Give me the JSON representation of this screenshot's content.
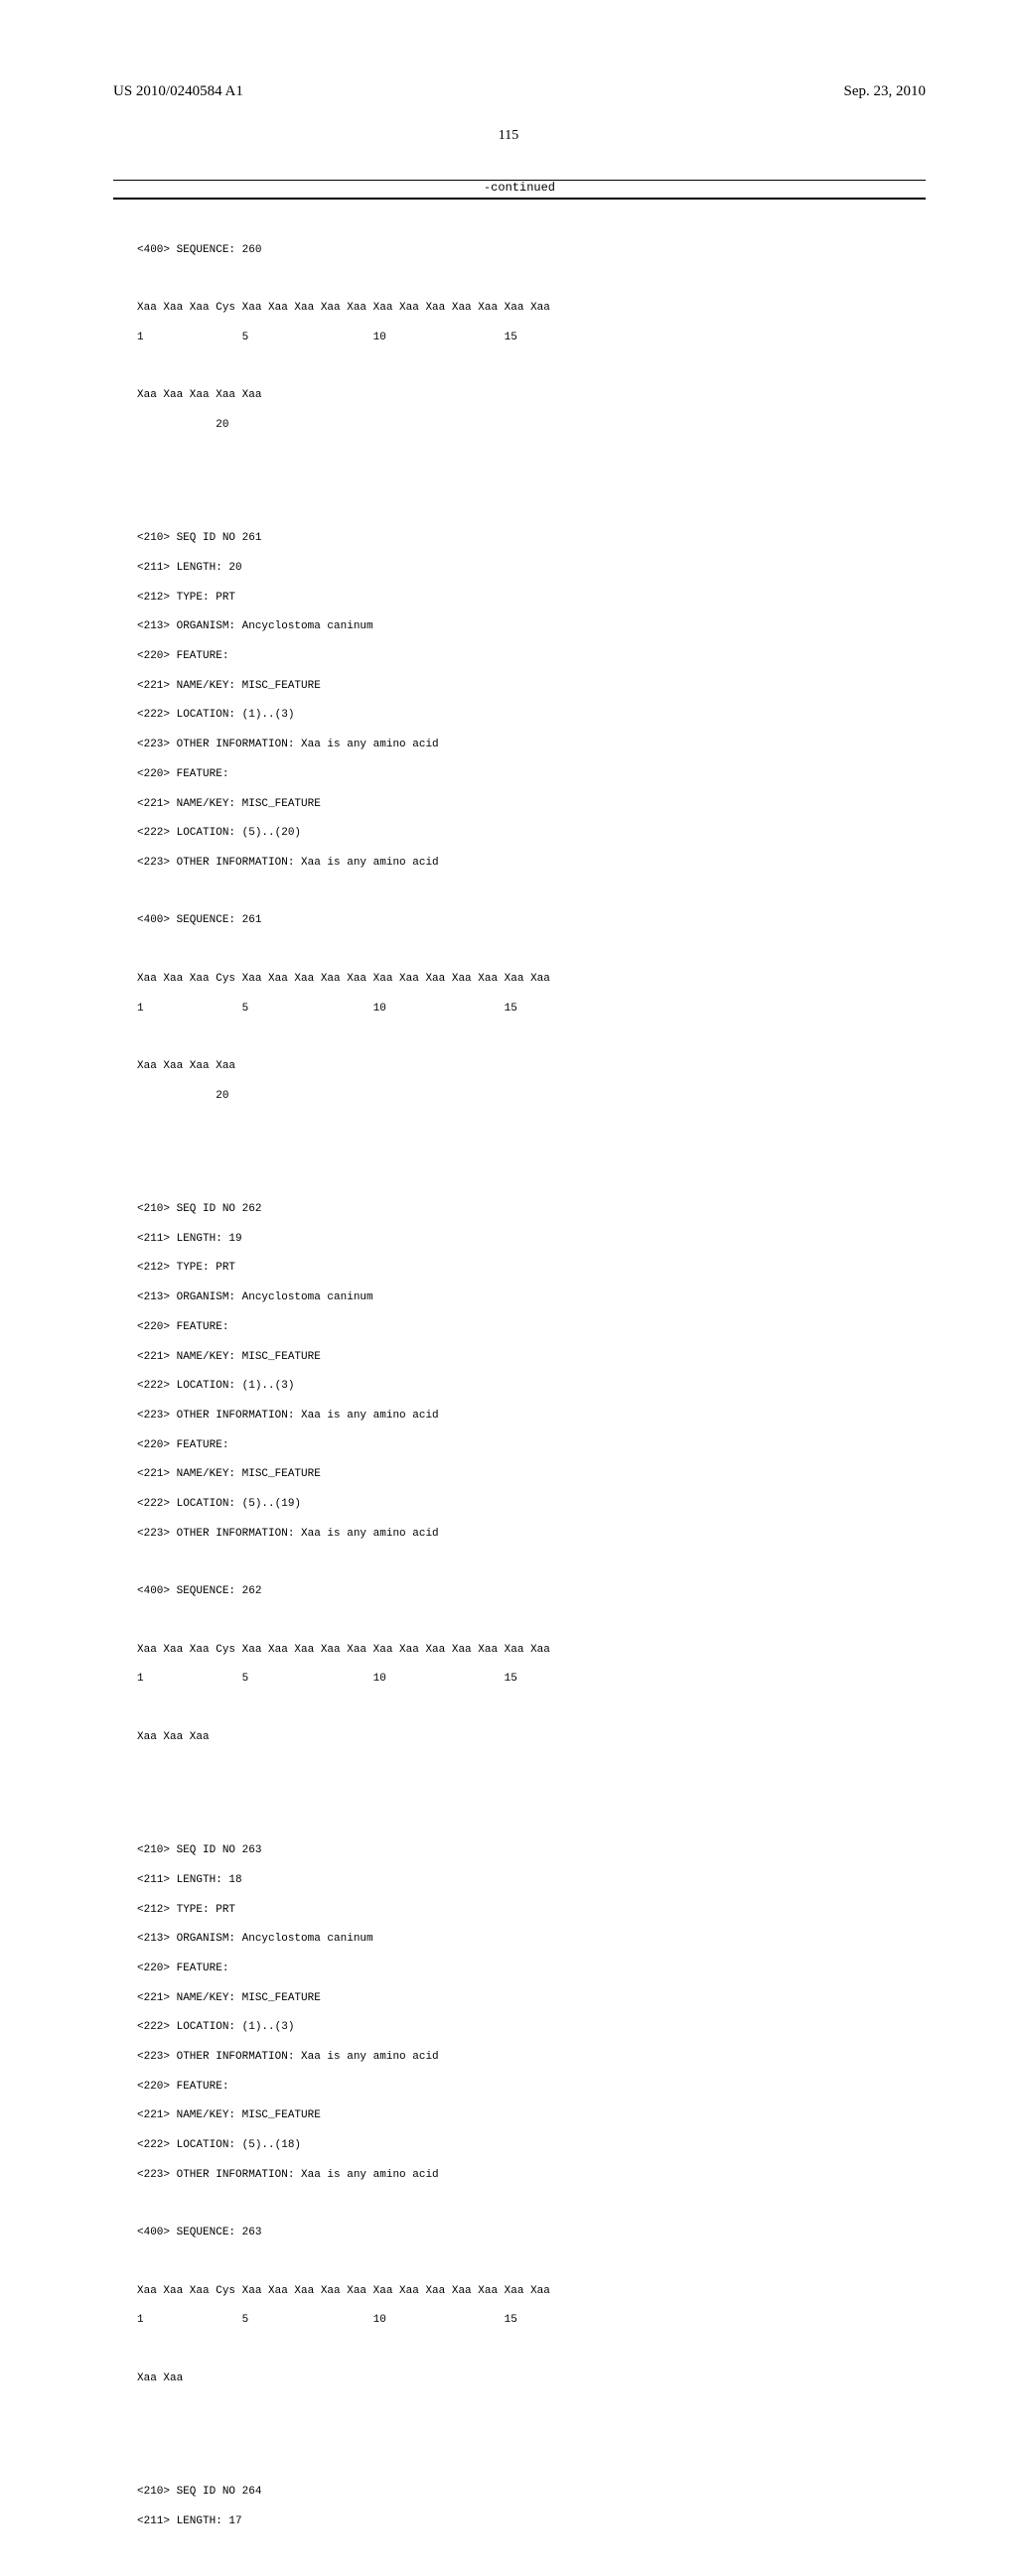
{
  "header": {
    "publication_number": "US 2010/0240584 A1",
    "publication_date": "Sep. 23, 2010"
  },
  "page_number": "115",
  "continued_label": "-continued",
  "entries": [
    {
      "seq_header": "<400> SEQUENCE: 260",
      "seq_line1": "Xaa Xaa Xaa Cys Xaa Xaa Xaa Xaa Xaa Xaa Xaa Xaa Xaa Xaa Xaa Xaa",
      "pos_line1": "1               5                   10                  15",
      "seq_line2": "Xaa Xaa Xaa Xaa Xaa",
      "pos_line2": "            20"
    },
    {
      "meta": [
        "<210> SEQ ID NO 261",
        "<211> LENGTH: 20",
        "<212> TYPE: PRT",
        "<213> ORGANISM: Ancyclostoma caninum",
        "<220> FEATURE:",
        "<221> NAME/KEY: MISC_FEATURE",
        "<222> LOCATION: (1)..(3)",
        "<223> OTHER INFORMATION: Xaa is any amino acid",
        "<220> FEATURE:",
        "<221> NAME/KEY: MISC_FEATURE",
        "<222> LOCATION: (5)..(20)",
        "<223> OTHER INFORMATION: Xaa is any amino acid"
      ],
      "seq_header": "<400> SEQUENCE: 261",
      "seq_line1": "Xaa Xaa Xaa Cys Xaa Xaa Xaa Xaa Xaa Xaa Xaa Xaa Xaa Xaa Xaa Xaa",
      "pos_line1": "1               5                   10                  15",
      "seq_line2": "Xaa Xaa Xaa Xaa",
      "pos_line2": "            20"
    },
    {
      "meta": [
        "<210> SEQ ID NO 262",
        "<211> LENGTH: 19",
        "<212> TYPE: PRT",
        "<213> ORGANISM: Ancyclostoma caninum",
        "<220> FEATURE:",
        "<221> NAME/KEY: MISC_FEATURE",
        "<222> LOCATION: (1)..(3)",
        "<223> OTHER INFORMATION: Xaa is any amino acid",
        "<220> FEATURE:",
        "<221> NAME/KEY: MISC_FEATURE",
        "<222> LOCATION: (5)..(19)",
        "<223> OTHER INFORMATION: Xaa is any amino acid"
      ],
      "seq_header": "<400> SEQUENCE: 262",
      "seq_line1": "Xaa Xaa Xaa Cys Xaa Xaa Xaa Xaa Xaa Xaa Xaa Xaa Xaa Xaa Xaa Xaa",
      "pos_line1": "1               5                   10                  15",
      "seq_line2": "Xaa Xaa Xaa",
      "pos_line2": ""
    },
    {
      "meta": [
        "<210> SEQ ID NO 263",
        "<211> LENGTH: 18",
        "<212> TYPE: PRT",
        "<213> ORGANISM: Ancyclostoma caninum",
        "<220> FEATURE:",
        "<221> NAME/KEY: MISC_FEATURE",
        "<222> LOCATION: (1)..(3)",
        "<223> OTHER INFORMATION: Xaa is any amino acid",
        "<220> FEATURE:",
        "<221> NAME/KEY: MISC_FEATURE",
        "<222> LOCATION: (5)..(18)",
        "<223> OTHER INFORMATION: Xaa is any amino acid"
      ],
      "seq_header": "<400> SEQUENCE: 263",
      "seq_line1": "Xaa Xaa Xaa Cys Xaa Xaa Xaa Xaa Xaa Xaa Xaa Xaa Xaa Xaa Xaa Xaa",
      "pos_line1": "1               5                   10                  15",
      "seq_line2": "Xaa Xaa",
      "pos_line2": ""
    },
    {
      "meta": [
        "<210> SEQ ID NO 264",
        "<211> LENGTH: 17"
      ]
    }
  ]
}
